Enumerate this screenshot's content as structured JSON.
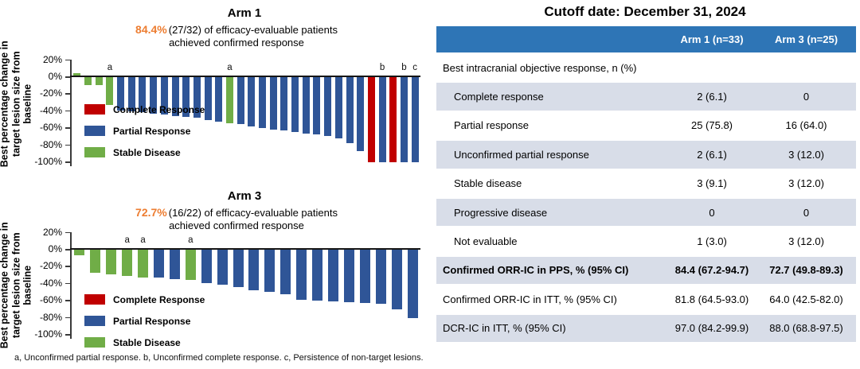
{
  "colors": {
    "highlight_orange": "#ED7D31",
    "table_header_bg": "#2E75B6",
    "table_header_text": "#FFFFFF",
    "row_shaded_bg": "#D8DDE8",
    "axis": "#3A3A3A",
    "category": {
      "CR": "#C00000",
      "PR": "#2F5597",
      "SD": "#70AD47"
    }
  },
  "y_axis": {
    "label_lines": [
      "Best percentage change in",
      "target lesion size from",
      "baseline"
    ],
    "ticks": [
      "20%",
      "0%",
      "-20%",
      "-40%",
      "-60%",
      "-80%",
      "-100%"
    ],
    "tick_values": [
      20,
      0,
      -20,
      -40,
      -60,
      -80,
      -100
    ]
  },
  "legend": [
    {
      "label": "Complete Response",
      "color": "#C00000",
      "icon": "complete-response-swatch"
    },
    {
      "label": "Partial Response",
      "color": "#2F5597",
      "icon": "partial-response-swatch"
    },
    {
      "label": "Stable Disease",
      "color": "#70AD47",
      "icon": "stable-disease-swatch"
    }
  ],
  "chart_data": [
    {
      "type": "bar",
      "title": "Arm 1",
      "highlight_pct": "84.4%",
      "subtitle_rest": "(27/32) of efficacy-evaluable patients",
      "subtitle_line2": "achieved confirmed response",
      "ylabel": "Best percentage change in target lesion size from baseline",
      "ylim": [
        -100,
        20
      ],
      "values": [
        4,
        -10,
        -10,
        -33,
        -40,
        -41,
        -42,
        -43,
        -44,
        -46,
        -47,
        -48,
        -51,
        -53,
        -55,
        -56,
        -58,
        -60,
        -62,
        -63,
        -65,
        -67,
        -68,
        -70,
        -72,
        -78,
        -87,
        -100,
        -100,
        -100,
        -100,
        -100
      ],
      "categories": [
        "SD",
        "SD",
        "SD",
        "SD",
        "PR",
        "PR",
        "PR",
        "PR",
        "PR",
        "PR",
        "PR",
        "PR",
        "PR",
        "PR",
        "SD",
        "PR",
        "PR",
        "PR",
        "PR",
        "PR",
        "PR",
        "PR",
        "PR",
        "PR",
        "PR",
        "PR",
        "PR",
        "CR",
        "PR",
        "CR",
        "PR",
        "PR"
      ],
      "annotations": [
        {
          "index": 3,
          "text": "a"
        },
        {
          "index": 14,
          "text": "a"
        },
        {
          "index": 28,
          "text": "b"
        },
        {
          "index": 30,
          "text": "b"
        },
        {
          "index": 31,
          "text": "c"
        }
      ]
    },
    {
      "type": "bar",
      "title": "Arm 3",
      "highlight_pct": "72.7%",
      "subtitle_rest": "(16/22) of efficacy-evaluable patients",
      "subtitle_line2": "achieved confirmed response",
      "ylabel": "Best percentage change in target lesion size from baseline",
      "ylim": [
        -100,
        20
      ],
      "values": [
        -7,
        -28,
        -29,
        -31,
        -33,
        -33,
        -35,
        -36,
        -40,
        -42,
        -44,
        -48,
        -50,
        -53,
        -59,
        -60,
        -61,
        -62,
        -63,
        -64,
        -71,
        -81
      ],
      "categories": [
        "SD",
        "SD",
        "SD",
        "SD",
        "SD",
        "PR",
        "PR",
        "SD",
        "PR",
        "PR",
        "PR",
        "PR",
        "PR",
        "PR",
        "PR",
        "PR",
        "PR",
        "PR",
        "PR",
        "PR",
        "PR",
        "PR"
      ],
      "annotations": [
        {
          "index": 3,
          "text": "a"
        },
        {
          "index": 4,
          "text": "a"
        },
        {
          "index": 7,
          "text": "a"
        }
      ]
    }
  ],
  "footnote": "a, Unconfirmed partial response. b, Unconfirmed complete response. c, Persistence of non-target lesions.",
  "table": {
    "title": "Cutoff date: December 31, 2024",
    "columns": [
      "",
      "Arm 1 (n=33)",
      "Arm 3 (n=25)"
    ],
    "rows": [
      {
        "label": "Best intracranial objective response, n (%)",
        "arm1": "",
        "arm3": "",
        "indent": false,
        "bold": false,
        "shaded": false
      },
      {
        "label": "Complete response",
        "arm1": "2 (6.1)",
        "arm3": "0",
        "indent": true,
        "bold": false,
        "shaded": true
      },
      {
        "label": "Partial response",
        "arm1": "25 (75.8)",
        "arm3": "16 (64.0)",
        "indent": true,
        "bold": false,
        "shaded": false
      },
      {
        "label": "Unconfirmed partial response",
        "arm1": "2 (6.1)",
        "arm3": "3 (12.0)",
        "indent": true,
        "bold": false,
        "shaded": true
      },
      {
        "label": "Stable disease",
        "arm1": "3 (9.1)",
        "arm3": "3 (12.0)",
        "indent": true,
        "bold": false,
        "shaded": false
      },
      {
        "label": "Progressive disease",
        "arm1": "0",
        "arm3": "0",
        "indent": true,
        "bold": false,
        "shaded": true
      },
      {
        "label": "Not evaluable",
        "arm1": "1 (3.0)",
        "arm3": "3 (12.0)",
        "indent": true,
        "bold": false,
        "shaded": false
      },
      {
        "label": "Confirmed ORR-IC in PPS, % (95% CI)",
        "arm1": "84.4 (67.2-94.7)",
        "arm3": "72.7 (49.8-89.3)",
        "indent": false,
        "bold": true,
        "shaded": true
      },
      {
        "label": "Confirmed ORR-IC in ITT, % (95% CI)",
        "arm1": "81.8 (64.5-93.0)",
        "arm3": "64.0 (42.5-82.0)",
        "indent": false,
        "bold": false,
        "shaded": false
      },
      {
        "label": "DCR-IC in ITT, % (95% CI)",
        "arm1": "97.0 (84.2-99.9)",
        "arm3": "88.0 (68.8-97.5)",
        "indent": false,
        "bold": false,
        "shaded": true
      }
    ]
  }
}
